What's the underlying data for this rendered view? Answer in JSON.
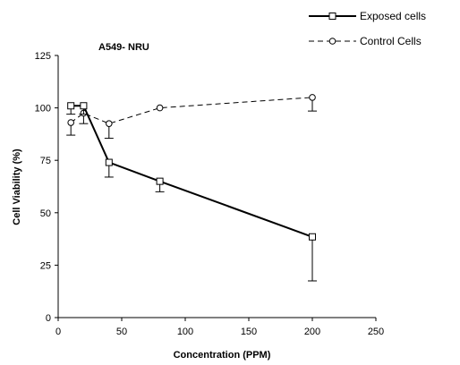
{
  "chart_data": {
    "type": "line",
    "title": "A549- NRU",
    "xlabel": "Concentration (PPM)",
    "ylabel": "Cell Viability (%)",
    "xlim": [
      0,
      250
    ],
    "ylim": [
      0,
      125
    ],
    "x_ticks": [
      0,
      50,
      100,
      150,
      200,
      250
    ],
    "y_ticks": [
      0,
      25,
      50,
      75,
      100,
      125
    ],
    "grid": false,
    "legend_position": "top-right",
    "series": [
      {
        "name": "Exposed cells",
        "style": "solid",
        "marker": "square",
        "x": [
          10,
          20,
          40,
          80,
          200
        ],
        "y": [
          101,
          101,
          74,
          65,
          38.5
        ],
        "error_minus": [
          4,
          4,
          7,
          5,
          21
        ],
        "error_plus": [
          0,
          0,
          0,
          0,
          0
        ]
      },
      {
        "name": "Control Cells",
        "style": "dashed",
        "marker": "circle",
        "x": [
          10,
          20,
          40,
          80,
          200
        ],
        "y": [
          93,
          97.5,
          92.5,
          100,
          105
        ],
        "error_minus": [
          6,
          5,
          7,
          0,
          6.5
        ],
        "error_plus": [
          0,
          0,
          0,
          0,
          0
        ]
      }
    ]
  }
}
